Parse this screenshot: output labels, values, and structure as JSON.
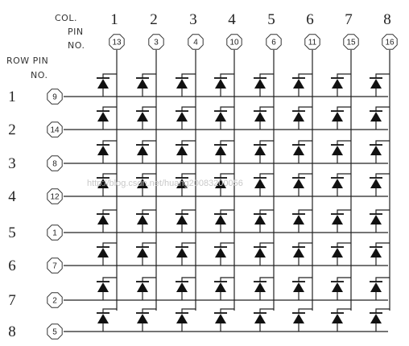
{
  "header": {
    "col_pin_label": [
      "COL.",
      "PIN",
      "NO."
    ],
    "row_pin_label": [
      "ROW PIN",
      "NO."
    ]
  },
  "columns": [
    {
      "number": "1",
      "pin": "13"
    },
    {
      "number": "2",
      "pin": "3"
    },
    {
      "number": "3",
      "pin": "4"
    },
    {
      "number": "4",
      "pin": "10"
    },
    {
      "number": "5",
      "pin": "6"
    },
    {
      "number": "6",
      "pin": "11"
    },
    {
      "number": "7",
      "pin": "15"
    },
    {
      "number": "8",
      "pin": "16"
    }
  ],
  "rows": [
    {
      "number": "1",
      "pin": "9"
    },
    {
      "number": "2",
      "pin": "14"
    },
    {
      "number": "3",
      "pin": "8"
    },
    {
      "number": "4",
      "pin": "12"
    },
    {
      "number": "5",
      "pin": "1"
    },
    {
      "number": "6",
      "pin": "7"
    },
    {
      "number": "7",
      "pin": "2"
    },
    {
      "number": "8",
      "pin": "5"
    }
  ],
  "watermark": "http://blog.csdn.net/huang20083200056"
}
